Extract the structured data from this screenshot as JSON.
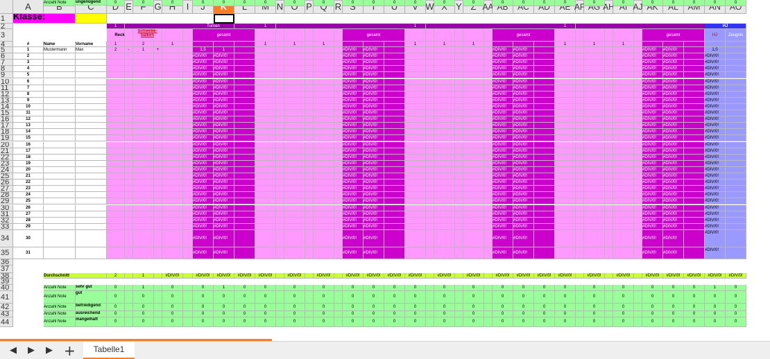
{
  "columns": [
    "A",
    "B",
    "C",
    "D",
    "E",
    "F",
    "G",
    "H",
    "I",
    "J",
    "K",
    "L",
    "M",
    "N",
    "O",
    "P",
    "Q",
    "R",
    "S",
    "T",
    "U",
    "V",
    "W",
    "X",
    "Y",
    "Z",
    "AA",
    "AB",
    "AC",
    "AD",
    "AE",
    "AF",
    "AG",
    "AH",
    "AI",
    "AJ",
    "AK",
    "AL",
    "AM",
    "AN",
    "AO"
  ],
  "selected_column": "K",
  "rows": {
    "r1": {
      "klasse_label": "Klasse:"
    },
    "r2": {
      "n1": "1",
      "turnen": "Turnen",
      "n2": "1",
      "n3": "1",
      "n4": "1",
      "hj": "HJ"
    },
    "r3": {
      "reck": "Reck",
      "schwebebalken": "Schwebe-balken",
      "gesamt": "gesamt",
      "hj": "HJ",
      "zeugnis": "Zeugnis"
    },
    "r4": {
      "hash": "#",
      "name": "Name",
      "vorname": "Vorname",
      "d": "1",
      "f": "2",
      "h": "1",
      "m": "1",
      "o": "1",
      "q": "1",
      "v": "1",
      "x": "1",
      "z": "1",
      "ae": "1",
      "ag": "1",
      "ai": "1"
    },
    "r5": {
      "num": "1",
      "name": "Mustermann",
      "vorname": "Max",
      "d": "2",
      "e": "-",
      "f": "1",
      "g": "+",
      "j": "1,5",
      "k": "1",
      "an": "1,0"
    }
  },
  "student_numbers": [
    "1",
    "2",
    "3",
    "4",
    "5",
    "6",
    "7",
    "8",
    "9",
    "10",
    "11",
    "12",
    "13",
    "14",
    "15",
    "16",
    "17",
    "18",
    "19",
    "20",
    "21",
    "22",
    "23",
    "24",
    "25",
    "26",
    "27",
    "28",
    "29",
    "30",
    "31"
  ],
  "error_value": "#DIV/0!",
  "durchschnitt": {
    "label": "Durchschnitt",
    "d": "2",
    "f": "1"
  },
  "grade_rows": [
    {
      "prefix": "Anzahl Note",
      "label": "sehr gut",
      "values": {
        "D": "0",
        "F": "1",
        "H": "0",
        "J": "0",
        "K": "1",
        "L": "0",
        "M": "0",
        "O": "0",
        "Q": "0",
        "S": "0",
        "T": "0",
        "U": "0",
        "V": "0",
        "X": "0",
        "Z": "0",
        "AB": "0",
        "AC": "0",
        "AD": "0",
        "AE": "0",
        "AG": "0",
        "AI": "0",
        "AK": "0",
        "AL": "0",
        "AM": "0",
        "AN": "1",
        "AO": "0"
      }
    },
    {
      "prefix": "Anzahl Note",
      "label": "gut",
      "values": {
        "D": "0",
        "F": "0",
        "H": "0",
        "J": "0",
        "K": "0",
        "L": "0",
        "M": "0",
        "O": "0",
        "Q": "0",
        "S": "0",
        "T": "0",
        "U": "0",
        "V": "0",
        "X": "0",
        "Z": "0",
        "AB": "0",
        "AC": "0",
        "AD": "0",
        "AE": "0",
        "AG": "0",
        "AI": "0",
        "AK": "0",
        "AL": "0",
        "AM": "0",
        "AN": "0",
        "AO": "0"
      }
    },
    {
      "prefix": "Anzahl Note",
      "label": "befriedigend",
      "values": {
        "D": "0",
        "F": "0",
        "H": "0",
        "J": "0",
        "K": "0",
        "L": "0",
        "M": "0",
        "O": "0",
        "Q": "0",
        "S": "0",
        "T": "0",
        "U": "0",
        "V": "0",
        "X": "0",
        "Z": "0",
        "AB": "0",
        "AC": "0",
        "AD": "0",
        "AE": "0",
        "AG": "0",
        "AI": "0",
        "AK": "0",
        "AL": "0",
        "AM": "0",
        "AN": "0",
        "AO": "0"
      }
    },
    {
      "prefix": "Anzahl Note",
      "label": "ausreichend",
      "values": {
        "D": "0",
        "F": "0",
        "H": "0",
        "J": "0",
        "K": "0",
        "L": "0",
        "M": "0",
        "O": "0",
        "Q": "0",
        "S": "0",
        "T": "0",
        "U": "0",
        "V": "0",
        "X": "0",
        "Z": "0",
        "AB": "0",
        "AC": "0",
        "AD": "0",
        "AE": "0",
        "AG": "0",
        "AI": "0",
        "AK": "0",
        "AL": "0",
        "AM": "0",
        "AN": "0",
        "AO": "0"
      }
    },
    {
      "prefix": "Anzahl Note",
      "label": "mangelhaft",
      "values": {
        "D": "0",
        "F": "0",
        "H": "0",
        "J": "0",
        "K": "0",
        "L": "0",
        "M": "0",
        "O": "0",
        "Q": "0",
        "S": "0",
        "T": "0",
        "U": "0",
        "V": "0",
        "X": "0",
        "Z": "0",
        "AB": "0",
        "AC": "0",
        "AD": "0",
        "AE": "0",
        "AG": "0",
        "AI": "0",
        "AK": "0",
        "AL": "0",
        "AM": "0",
        "AN": "0",
        "AO": "0"
      }
    },
    {
      "prefix": "Anzahl Note",
      "label": "ungenügend",
      "values": {
        "D": "0",
        "F": "0",
        "H": "0",
        "J": "0",
        "K": "0",
        "L": "0",
        "M": "0",
        "O": "0",
        "Q": "0",
        "S": "0",
        "T": "0",
        "U": "0",
        "V": "0",
        "X": "0",
        "Z": "0",
        "AB": "0",
        "AC": "0",
        "AD": "0",
        "AE": "0",
        "AG": "0",
        "AI": "0",
        "AK": "0",
        "AL": "0",
        "AM": "0",
        "AN": "0",
        "AO": "0"
      }
    }
  ],
  "sheet_tab": {
    "label": "Tabelle1"
  },
  "nav": {
    "first": "⏮",
    "prev": "◀",
    "next": "▶",
    "last": "⏭",
    "add": "+"
  },
  "colors": {
    "pink": "#ff99ff",
    "magenta": "#cc00cc",
    "purple_bar": "#9900aa",
    "lime": "#ccff33",
    "green": "#99ff99",
    "blue": "#9999ff",
    "blue_header": "#3333ff",
    "orange_accent": "#f97d25",
    "klasse_bg": "#ff00ff",
    "yellow": "#ffff00"
  }
}
